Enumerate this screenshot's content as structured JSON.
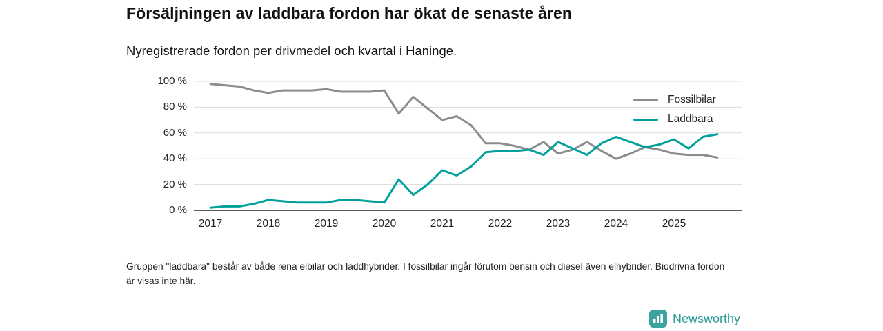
{
  "header": {
    "title": "Försäljningen av laddbara fordon har ökat de senaste åren",
    "subtitle": "Nyregistrerade fordon per drivmedel och kvartal i Haninge."
  },
  "chart_data": {
    "type": "line",
    "x": [
      "2017 Q1",
      "2017 Q2",
      "2017 Q3",
      "2017 Q4",
      "2018 Q1",
      "2018 Q2",
      "2018 Q3",
      "2018 Q4",
      "2019 Q1",
      "2019 Q2",
      "2019 Q3",
      "2019 Q4",
      "2020 Q1",
      "2020 Q2",
      "2020 Q3",
      "2020 Q4",
      "2021 Q1",
      "2021 Q2",
      "2021 Q3",
      "2021 Q4",
      "2022 Q1",
      "2022 Q2",
      "2022 Q3",
      "2022 Q4",
      "2023 Q1",
      "2023 Q2",
      "2023 Q3",
      "2023 Q4",
      "2024 Q1",
      "2024 Q2",
      "2024 Q3",
      "2024 Q4",
      "2025 Q1",
      "2025 Q2",
      "2025 Q3",
      "2025 Q4"
    ],
    "series": [
      {
        "name": "Fossilbilar",
        "color": "#8c8c8c",
        "values": [
          98,
          97,
          96,
          93,
          91,
          93,
          93,
          93,
          94,
          92,
          92,
          92,
          93,
          75,
          88,
          79,
          70,
          73,
          66,
          52,
          52,
          50,
          47,
          53,
          44,
          47,
          53,
          46,
          40,
          44,
          49,
          47,
          44,
          43,
          43,
          41
        ]
      },
      {
        "name": "Laddbara",
        "color": "#00a19d",
        "values": [
          2,
          3,
          3,
          5,
          8,
          7,
          6,
          6,
          6,
          8,
          8,
          7,
          6,
          24,
          12,
          20,
          31,
          27,
          34,
          45,
          46,
          46,
          47,
          43,
          53,
          48,
          43,
          52,
          57,
          53,
          49,
          51,
          55,
          48,
          57,
          59
        ]
      }
    ],
    "ylim": [
      0,
      100
    ],
    "yticks": [
      0,
      20,
      40,
      60,
      80,
      100
    ],
    "ytick_suffix": " %",
    "x_tick_labels": [
      "2017",
      "2018",
      "2019",
      "2020",
      "2021",
      "2022",
      "2023",
      "2024",
      "2025"
    ],
    "x_tick_positions": [
      0,
      4,
      8,
      12,
      16,
      20,
      24,
      28,
      32
    ],
    "grid": "horizontal",
    "legend_position": "top-right"
  },
  "footnote": {
    "text": "Gruppen \"laddbara\" består av både rena elbilar och laddhybrider. I fossilbilar ingår förutom bensin och diesel även elhybrider. Biodrivna fordon är visas inte här."
  },
  "branding": {
    "name": "Newsworthy",
    "color": "#2e9d99",
    "icon_color": "#3ba29e"
  }
}
